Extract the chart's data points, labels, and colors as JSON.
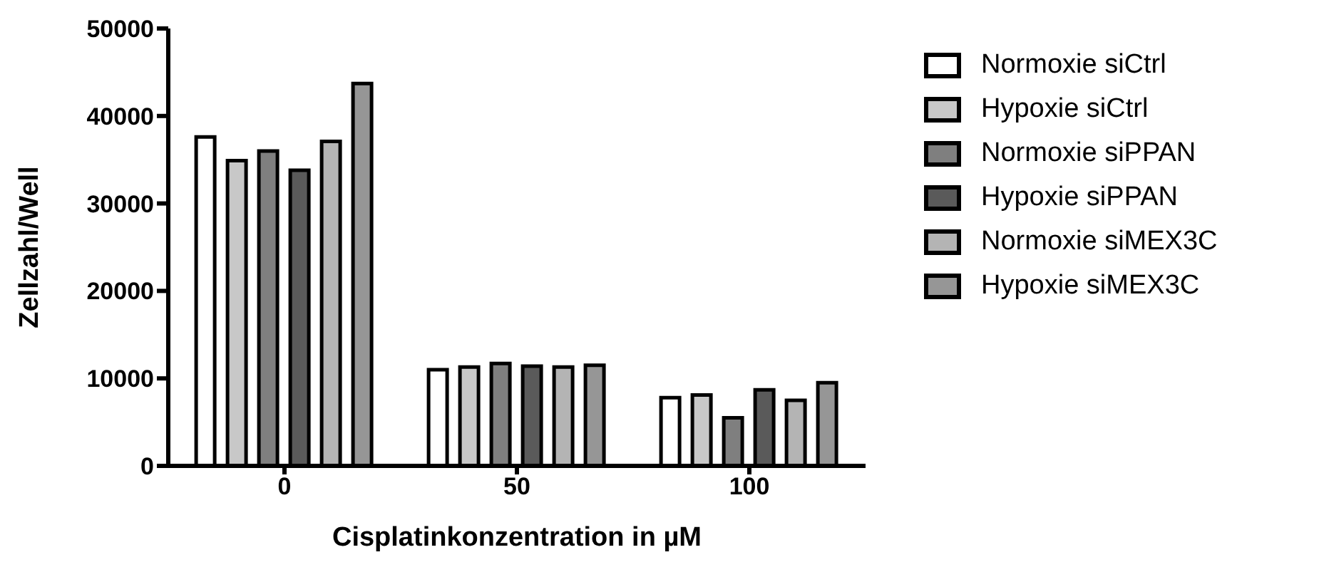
{
  "chart_data": {
    "type": "bar",
    "xlabel": "Cisplatinkonzentration in µM",
    "ylabel": "Zellzahl/Well",
    "categories": [
      "0",
      "50",
      "100"
    ],
    "series": [
      {
        "name": "Normoxie siCtrl",
        "color": "#ffffff",
        "values": [
          37600,
          11000,
          7800
        ]
      },
      {
        "name": "Hypoxie siCtrl",
        "color": "#c8c8c8",
        "values": [
          34900,
          11300,
          8100
        ]
      },
      {
        "name": "Normoxie siPPAN",
        "color": "#7f7f7f",
        "values": [
          36000,
          11700,
          5500
        ]
      },
      {
        "name": "Hypoxie siPPAN",
        "color": "#5a5a5a",
        "values": [
          33800,
          11400,
          8700
        ]
      },
      {
        "name": "Normoxie siMEX3C",
        "color": "#b4b4b4",
        "values": [
          37100,
          11300,
          7500
        ]
      },
      {
        "name": "Hypoxie siMEX3C",
        "color": "#969696",
        "values": [
          43700,
          11500,
          9500
        ]
      }
    ],
    "ylim": [
      0,
      50000
    ],
    "yticks": [
      0,
      10000,
      20000,
      30000,
      40000,
      50000
    ],
    "grid": false,
    "legend": "right"
  }
}
